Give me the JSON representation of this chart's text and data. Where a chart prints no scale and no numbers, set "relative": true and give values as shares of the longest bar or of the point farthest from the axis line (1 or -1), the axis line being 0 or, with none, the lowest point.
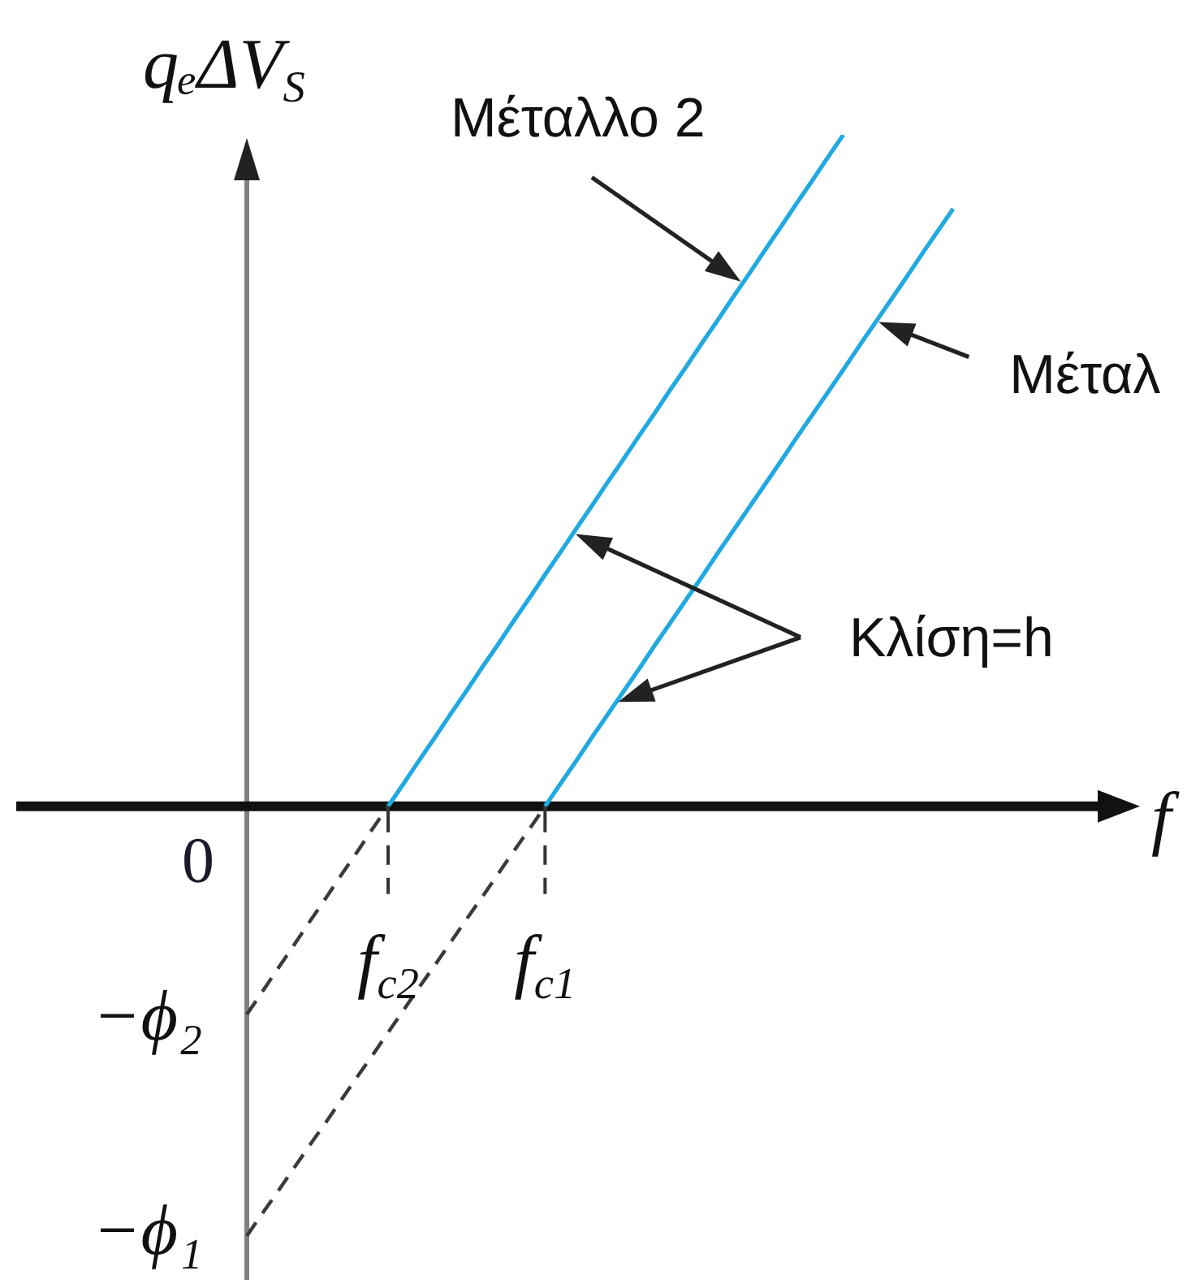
{
  "chart_data": {
    "type": "line",
    "relative": true,
    "xlabel": "f",
    "ylabel": "qₑΔV$_{S}$",
    "categories": [
      null,
      null,
      null,
      null,
      null,
      null,
      null,
      null,
      null,
      "f$_{c2}$",
      null,
      null,
      null,
      null,
      null,
      null,
      null,
      null,
      null,
      "f$_{c1}$",
      null,
      null,
      null,
      null,
      null,
      null,
      null,
      null,
      null,
      null,
      null,
      null,
      null,
      null,
      null,
      null,
      null,
      null,
      null,
      null,
      null,
      null,
      null,
      null,
      null,
      null
    ],
    "series": [
      {
        "color": "#21a9e1",
        "values": [
          null,
          null,
          null,
          null,
          null,
          null,
          null,
          null,
          null,
          0,
          0.034,
          0.069,
          0.103,
          0.138,
          0.172,
          0.207,
          0.241,
          0.276,
          0.31,
          0.345,
          0.379,
          0.414,
          0.448,
          0.483,
          0.517,
          0.552,
          0.586,
          0.621,
          0.655,
          0.69,
          0.724,
          0.759,
          0.793,
          0.828,
          0.862,
          0.897,
          0.931,
          0.966,
          1,
          null,
          null,
          null,
          null,
          null,
          null,
          null
        ]
      },
      {
        "color": "#21a9e1",
        "values": [
          null,
          null,
          null,
          null,
          null,
          null,
          null,
          null,
          null,
          null,
          null,
          null,
          null,
          null,
          null,
          null,
          null,
          null,
          null,
          0,
          0.034,
          0.068,
          0.103,
          0.137,
          0.171,
          0.205,
          0.24,
          0.274,
          0.308,
          0.342,
          0.377,
          0.411,
          0.445,
          0.479,
          0.513,
          0.548,
          0.582,
          0.616,
          0.65,
          0.685,
          0.719,
          0.753,
          0.787,
          0.822,
          0.856,
          0.89
        ]
      },
      {
        "color": "#3a3a3a",
        "line_style": "dashed",
        "values": [
          -0.31,
          -0.276,
          -0.241,
          -0.207,
          -0.172,
          -0.138,
          -0.103,
          -0.069,
          -0.034,
          0,
          null,
          null,
          null,
          null,
          null,
          null,
          null,
          null,
          null,
          null,
          null,
          null,
          null,
          null,
          null,
          null,
          null,
          null,
          null,
          null,
          null,
          null,
          null,
          null,
          null,
          null,
          null,
          null,
          null,
          null,
          null,
          null,
          null,
          null,
          null,
          null
        ]
      },
      {
        "color": "#3a3a3a",
        "line_style": "dashed",
        "values": [
          -0.64,
          -0.606,
          -0.573,
          -0.539,
          -0.505,
          -0.472,
          -0.438,
          -0.404,
          -0.371,
          -0.337,
          -0.303,
          -0.269,
          -0.236,
          -0.202,
          -0.168,
          -0.135,
          -0.101,
          -0.067,
          -0.034,
          0,
          null,
          null,
          null,
          null,
          null,
          null,
          null,
          null,
          null,
          null,
          null,
          null,
          null,
          null,
          null,
          null,
          null,
          null,
          null,
          null,
          null,
          null,
          null,
          null,
          null,
          null
        ]
      }
    ],
    "annotations": [
      "Μέταλλο 2",
      "Μέταλ",
      "Κλίση=h",
      "0",
      "−ϕ₂",
      "−ϕ₁"
    ]
  }
}
